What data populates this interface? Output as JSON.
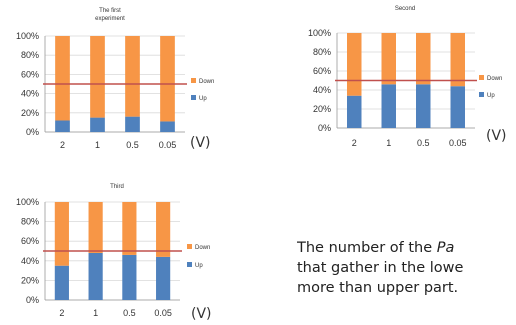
{
  "chart_data": [
    {
      "type": "bar",
      "stacked": true,
      "percent": true,
      "title": "The first experiment",
      "categories": [
        "2",
        "1",
        "0.5",
        "0.05"
      ],
      "series": [
        {
          "name": "Up",
          "values": [
            12,
            15,
            16,
            11
          ]
        },
        {
          "name": "Down",
          "values": [
            88,
            85,
            84,
            89
          ]
        }
      ],
      "yticks": [
        "0%",
        "20%",
        "40%",
        "60%",
        "80%",
        "100%"
      ],
      "ylim": [
        0,
        100
      ],
      "unit": "(V)",
      "reference_line": 50,
      "legend": "right",
      "grid": true
    },
    {
      "type": "bar",
      "stacked": true,
      "percent": true,
      "title": "Second",
      "categories": [
        "2",
        "1",
        "0.5",
        "0.05"
      ],
      "series": [
        {
          "name": "Up",
          "values": [
            34,
            46,
            46,
            44
          ]
        },
        {
          "name": "Down",
          "values": [
            66,
            54,
            54,
            56
          ]
        }
      ],
      "yticks": [
        "0%",
        "20%",
        "40%",
        "60%",
        "80%",
        "100%"
      ],
      "ylim": [
        0,
        100
      ],
      "unit": "(V)",
      "reference_line": 50,
      "legend": "right",
      "grid": true
    },
    {
      "type": "bar",
      "stacked": true,
      "percent": true,
      "title": "Third",
      "categories": [
        "2",
        "1",
        "0.5",
        "0.05"
      ],
      "series": [
        {
          "name": "Up",
          "values": [
            35,
            48,
            46,
            44
          ]
        },
        {
          "name": "Down",
          "values": [
            65,
            52,
            54,
            56
          ]
        }
      ],
      "yticks": [
        "0%",
        "20%",
        "40%",
        "60%",
        "80%",
        "100%"
      ],
      "ylim": [
        0,
        100
      ],
      "unit": "(V)",
      "reference_line": 50,
      "legend": "right",
      "grid": true
    }
  ],
  "colors": {
    "up": "#4f81bd",
    "down": "#f79646",
    "reference_line": "#c0504d",
    "grid": "#d9d9d9",
    "axis": "#999999"
  },
  "caption": {
    "line1_before": "The number of the ",
    "line1_italic": "Pa",
    "line2": "that gather in the lowe",
    "line3": "more than upper part."
  }
}
